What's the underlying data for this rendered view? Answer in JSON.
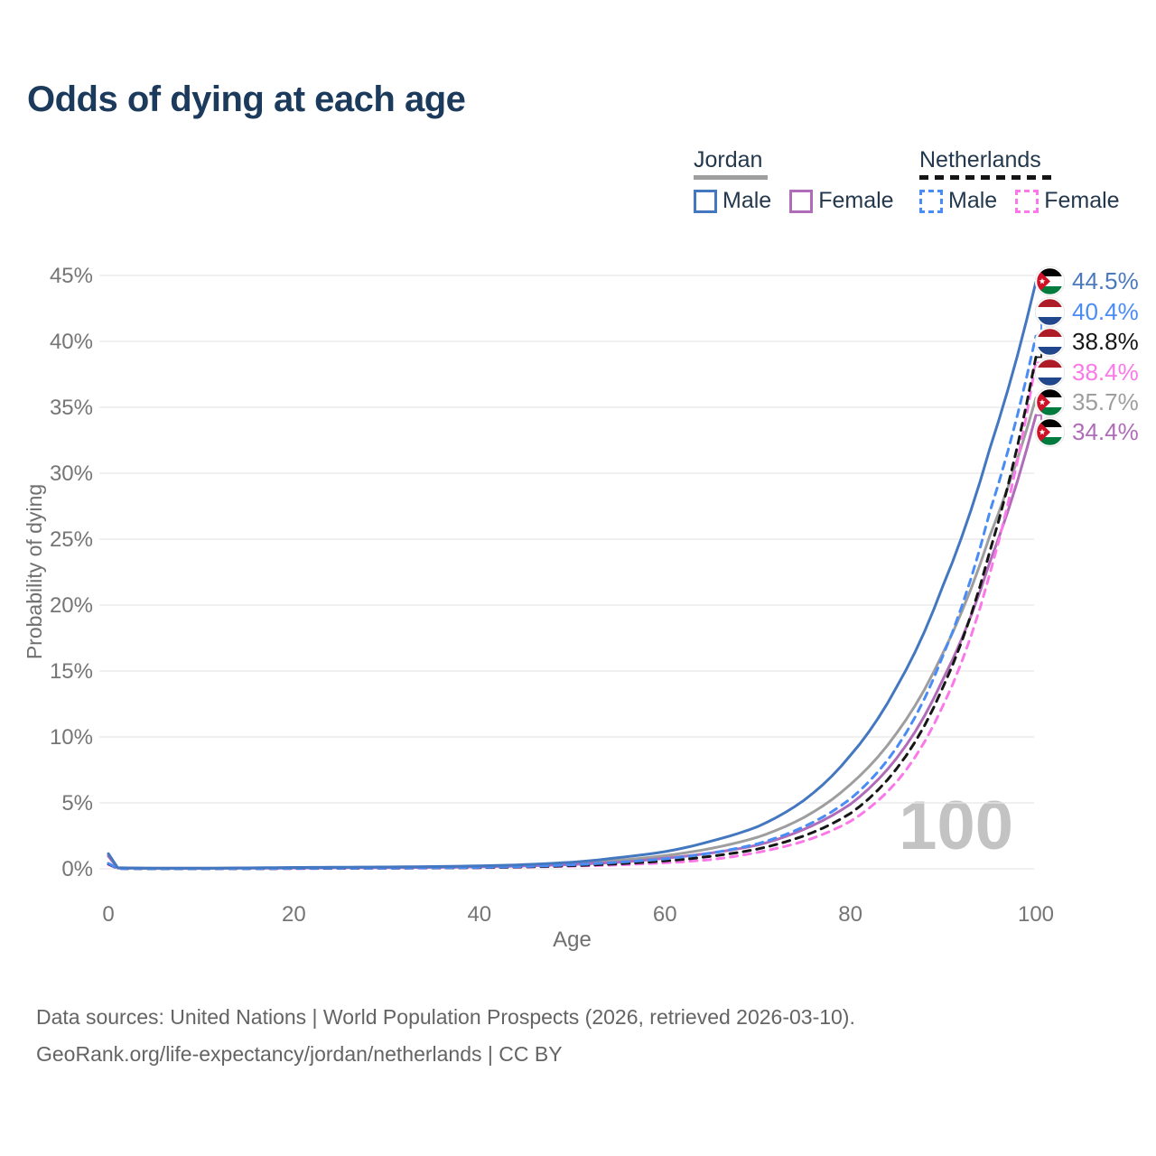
{
  "title": "Odds of dying at each age",
  "legend": {
    "groups": [
      {
        "country": "Jordan",
        "line_style": "solid",
        "underline_color": "#9e9e9e",
        "items": [
          {
            "label": "Male",
            "color": "#4377c0"
          },
          {
            "label": "Female",
            "color": "#b06cb8"
          }
        ]
      },
      {
        "country": "Netherlands",
        "line_style": "dashed",
        "underline_color": "#151515",
        "items": [
          {
            "label": "Male",
            "color": "#4a8cf5"
          },
          {
            "label": "Female",
            "color": "#fb78e8"
          }
        ]
      }
    ]
  },
  "chart_data": {
    "type": "line",
    "title": "Odds of dying at each age",
    "xlabel": "Age",
    "ylabel": "Probability of dying",
    "xlim": [
      0,
      100
    ],
    "ylim": [
      0,
      45
    ],
    "x_ticks": [
      "0",
      "20",
      "40",
      "60",
      "80",
      "100"
    ],
    "y_ticks": [
      "0%",
      "5%",
      "10%",
      "15%",
      "20%",
      "25%",
      "30%",
      "35%",
      "40%",
      "45%"
    ],
    "grid": "horizontal",
    "watermark": "100",
    "legend_position": "top-right",
    "series": [
      {
        "name": "Jordan Male",
        "country": "Jordan",
        "sex": "male",
        "color": "#4377c0",
        "dashed": false,
        "end_label": "44.5%",
        "points": [
          [
            0,
            1.15
          ],
          [
            1,
            0.08
          ],
          [
            5,
            0.05
          ],
          [
            10,
            0.05
          ],
          [
            15,
            0.07
          ],
          [
            20,
            0.1
          ],
          [
            25,
            0.12
          ],
          [
            30,
            0.14
          ],
          [
            35,
            0.17
          ],
          [
            40,
            0.22
          ],
          [
            45,
            0.32
          ],
          [
            50,
            0.5
          ],
          [
            55,
            0.85
          ],
          [
            60,
            1.3
          ],
          [
            65,
            2.1
          ],
          [
            70,
            3.2
          ],
          [
            75,
            5.2
          ],
          [
            80,
            8.6
          ],
          [
            85,
            13.8
          ],
          [
            90,
            21.5
          ],
          [
            95,
            31.8
          ],
          [
            100,
            44.5
          ]
        ]
      },
      {
        "name": "Jordan Female",
        "country": "Jordan",
        "sex": "female",
        "color": "#b06cb8",
        "dashed": false,
        "end_label": "34.4%",
        "points": [
          [
            0,
            0.95
          ],
          [
            1,
            0.06
          ],
          [
            5,
            0.03
          ],
          [
            10,
            0.03
          ],
          [
            15,
            0.05
          ],
          [
            20,
            0.06
          ],
          [
            25,
            0.08
          ],
          [
            30,
            0.09
          ],
          [
            35,
            0.11
          ],
          [
            40,
            0.15
          ],
          [
            45,
            0.22
          ],
          [
            50,
            0.33
          ],
          [
            55,
            0.5
          ],
          [
            60,
            0.8
          ],
          [
            65,
            1.2
          ],
          [
            70,
            1.8
          ],
          [
            75,
            3.0
          ],
          [
            80,
            4.9
          ],
          [
            85,
            8.4
          ],
          [
            90,
            14.4
          ],
          [
            95,
            23.2
          ],
          [
            100,
            34.4
          ]
        ]
      },
      {
        "name": "Jordan",
        "country": "Jordan",
        "sex": "both",
        "color": "#9e9e9e",
        "dashed": false,
        "end_label": "35.7%",
        "points": [
          [
            0,
            1.05
          ],
          [
            1,
            0.07
          ],
          [
            5,
            0.04
          ],
          [
            10,
            0.04
          ],
          [
            15,
            0.06
          ],
          [
            20,
            0.08
          ],
          [
            25,
            0.1
          ],
          [
            30,
            0.12
          ],
          [
            35,
            0.14
          ],
          [
            40,
            0.18
          ],
          [
            45,
            0.27
          ],
          [
            50,
            0.4
          ],
          [
            55,
            0.65
          ],
          [
            60,
            1.0
          ],
          [
            65,
            1.55
          ],
          [
            70,
            2.4
          ],
          [
            75,
            3.9
          ],
          [
            80,
            6.4
          ],
          [
            85,
            10.3
          ],
          [
            90,
            16.4
          ],
          [
            95,
            25.2
          ],
          [
            100,
            35.7
          ]
        ]
      },
      {
        "name": "Netherlands Male",
        "country": "Netherlands",
        "sex": "male",
        "color": "#4a8cf5",
        "dashed": true,
        "end_label": "40.4%",
        "points": [
          [
            0,
            0.42
          ],
          [
            1,
            0.03
          ],
          [
            5,
            0.01
          ],
          [
            10,
            0.01
          ],
          [
            15,
            0.02
          ],
          [
            20,
            0.04
          ],
          [
            25,
            0.05
          ],
          [
            30,
            0.06
          ],
          [
            35,
            0.08
          ],
          [
            40,
            0.11
          ],
          [
            45,
            0.18
          ],
          [
            50,
            0.3
          ],
          [
            55,
            0.5
          ],
          [
            60,
            0.75
          ],
          [
            65,
            1.2
          ],
          [
            70,
            1.9
          ],
          [
            75,
            3.2
          ],
          [
            80,
            5.3
          ],
          [
            85,
            9.2
          ],
          [
            90,
            16.2
          ],
          [
            95,
            27.0
          ],
          [
            100,
            40.4
          ]
        ]
      },
      {
        "name": "Netherlands Female",
        "country": "Netherlands",
        "sex": "female",
        "color": "#fb78e8",
        "dashed": true,
        "end_label": "38.4%",
        "points": [
          [
            0,
            0.33
          ],
          [
            1,
            0.02
          ],
          [
            5,
            0.01
          ],
          [
            10,
            0.01
          ],
          [
            15,
            0.012
          ],
          [
            20,
            0.02
          ],
          [
            25,
            0.03
          ],
          [
            30,
            0.04
          ],
          [
            35,
            0.06
          ],
          [
            40,
            0.08
          ],
          [
            45,
            0.13
          ],
          [
            50,
            0.2
          ],
          [
            55,
            0.3
          ],
          [
            60,
            0.45
          ],
          [
            65,
            0.7
          ],
          [
            70,
            1.25
          ],
          [
            75,
            2.1
          ],
          [
            80,
            3.6
          ],
          [
            85,
            6.6
          ],
          [
            90,
            12.4
          ],
          [
            95,
            22.3
          ],
          [
            100,
            38.4
          ]
        ]
      },
      {
        "name": "Netherlands",
        "country": "Netherlands",
        "sex": "both",
        "color": "#161616",
        "dashed": true,
        "end_label": "38.8%",
        "points": [
          [
            0,
            0.38
          ],
          [
            1,
            0.03
          ],
          [
            5,
            0.01
          ],
          [
            10,
            0.01
          ],
          [
            15,
            0.015
          ],
          [
            20,
            0.03
          ],
          [
            25,
            0.04
          ],
          [
            30,
            0.05
          ],
          [
            35,
            0.07
          ],
          [
            40,
            0.09
          ],
          [
            45,
            0.15
          ],
          [
            50,
            0.24
          ],
          [
            55,
            0.38
          ],
          [
            60,
            0.6
          ],
          [
            65,
            0.95
          ],
          [
            70,
            1.5
          ],
          [
            75,
            2.5
          ],
          [
            80,
            4.2
          ],
          [
            85,
            7.6
          ],
          [
            90,
            13.8
          ],
          [
            95,
            24.0
          ],
          [
            100,
            38.8
          ]
        ]
      }
    ]
  },
  "end_labels": [
    {
      "value": "44.5%",
      "flag": "jordan",
      "color": "#4a7abd",
      "series": 0
    },
    {
      "value": "40.4%",
      "flag": "netherlands",
      "color": "#4a8cf5",
      "series": 3
    },
    {
      "value": "38.8%",
      "flag": "netherlands",
      "color": "#161616",
      "series": 5
    },
    {
      "value": "38.4%",
      "flag": "netherlands",
      "color": "#fb78e8",
      "series": 4
    },
    {
      "value": "35.7%",
      "flag": "jordan",
      "color": "#9e9e9e",
      "series": 2
    },
    {
      "value": "34.4%",
      "flag": "jordan",
      "color": "#b06cb8",
      "series": 1
    }
  ],
  "footer": {
    "line1": "Data sources: United Nations | World Population Prospects (2026, retrieved 2026-03-10).",
    "line2": "GeoRank.org/life-expectancy/jordan/netherlands | CC BY"
  }
}
